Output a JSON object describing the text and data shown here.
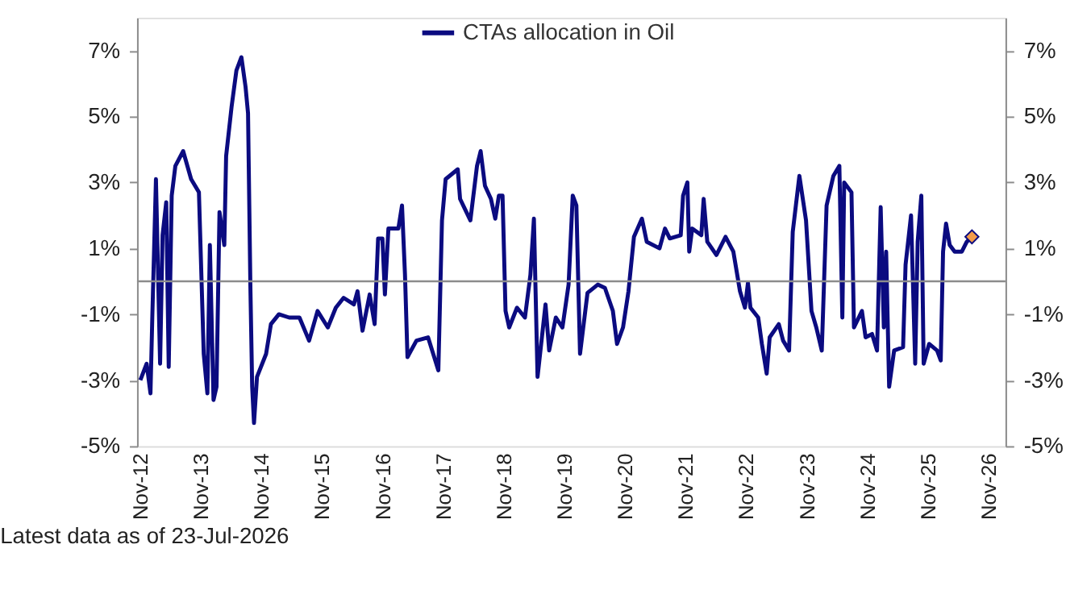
{
  "chart_data": {
    "type": "line",
    "xlim": [
      "2012-10-12",
      "2027-02-10"
    ],
    "xticks": [
      {
        "value": "2012-11-01",
        "label": "Nov-12"
      },
      {
        "value": "2013-11-01",
        "label": "Nov-13"
      },
      {
        "value": "2014-11-01",
        "label": "Nov-14"
      },
      {
        "value": "2015-11-01",
        "label": "Nov-15"
      },
      {
        "value": "2016-11-01",
        "label": "Nov-16"
      },
      {
        "value": "2017-11-01",
        "label": "Nov-17"
      },
      {
        "value": "2018-11-01",
        "label": "Nov-18"
      },
      {
        "value": "2019-11-01",
        "label": "Nov-19"
      },
      {
        "value": "2020-11-01",
        "label": "Nov-20"
      },
      {
        "value": "2021-11-01",
        "label": "Nov-21"
      },
      {
        "value": "2022-11-01",
        "label": "Nov-22"
      },
      {
        "value": "2023-11-01",
        "label": "Nov-23"
      },
      {
        "value": "2024-11-01",
        "label": "Nov-24"
      },
      {
        "value": "2025-11-01",
        "label": "Nov-25"
      },
      {
        "value": "2026-11-01",
        "label": "Nov-26"
      }
    ],
    "ylim": [
      -5,
      8
    ],
    "yticks": [
      {
        "value": -5,
        "label": "-5%"
      },
      {
        "value": -3,
        "label": "-3%"
      },
      {
        "value": -1,
        "label": "-1%"
      },
      {
        "value": 1,
        "label": "1%"
      },
      {
        "value": 3,
        "label": "3%"
      },
      {
        "value": 5,
        "label": "5%"
      },
      {
        "value": 7,
        "label": "7%"
      }
    ],
    "y2lim": [
      -5,
      8
    ],
    "y2ticks": [
      {
        "value": -5,
        "label": "-5%"
      },
      {
        "value": -3,
        "label": "-3%"
      },
      {
        "value": -1,
        "label": "-1%"
      },
      {
        "value": 1,
        "label": "1%"
      },
      {
        "value": 3,
        "label": "3%"
      },
      {
        "value": 5,
        "label": "5%"
      },
      {
        "value": 7,
        "label": "7%"
      }
    ],
    "grid": false,
    "legend": "top",
    "ref_lines": [
      {
        "axis": "y",
        "value": 0,
        "color": "#8c8c8c"
      }
    ],
    "annotations": [
      "Latest data as of 23-Jul-2026"
    ],
    "series": [
      {
        "name": "CTAs allocation in Oil",
        "color": "#0b0b80",
        "marker": "none",
        "x": [
          "2012-11-01",
          "2012-12-09",
          "2013-01-01",
          "2013-01-12",
          "2013-02-03",
          "2013-02-28",
          "2013-03-15",
          "2013-04-06",
          "2013-04-21",
          "2013-05-09",
          "2013-05-31",
          "2013-07-17",
          "2013-09-03",
          "2013-10-20",
          "2013-11-18",
          "2013-12-10",
          "2013-12-25",
          "2014-01-16",
          "2014-02-03",
          "2014-02-21",
          "2014-03-22",
          "2014-04-02",
          "2014-05-05",
          "2014-06-03",
          "2014-07-03",
          "2014-07-28",
          "2014-08-12",
          "2014-08-26",
          "2014-09-06",
          "2014-09-17",
          "2014-10-05",
          "2014-11-29",
          "2014-12-28",
          "2015-02-14",
          "2015-04-17",
          "2015-06-18",
          "2015-08-15",
          "2015-10-05",
          "2015-12-06",
          "2016-01-23",
          "2016-03-10",
          "2016-05-11",
          "2016-06-02",
          "2016-07-02",
          "2016-08-14",
          "2016-09-13",
          "2016-10-04",
          "2016-10-30",
          "2016-11-14",
          "2016-12-05",
          "2017-02-03",
          "2017-02-25",
          "2017-03-15",
          "2017-03-30",
          "2017-05-23",
          "2017-08-01",
          "2017-10-02",
          "2017-10-24",
          "2017-11-15",
          "2018-01-27",
          "2018-02-10",
          "2018-04-13",
          "2018-05-23",
          "2018-06-14",
          "2018-07-10",
          "2018-08-15",
          "2018-09-10",
          "2018-10-02",
          "2018-10-24",
          "2018-11-11",
          "2018-12-03",
          "2019-01-19",
          "2019-03-08",
          "2019-04-10",
          "2019-05-01",
          "2019-05-23",
          "2019-07-10",
          "2019-08-01",
          "2019-09-10",
          "2019-10-20",
          "2019-11-26",
          "2019-12-21",
          "2020-01-12",
          "2020-02-03",
          "2020-03-19",
          "2020-05-20",
          "2020-07-02",
          "2020-08-19",
          "2020-09-13",
          "2020-10-19",
          "2020-11-21",
          "2020-12-24",
          "2021-02-10",
          "2021-03-11",
          "2021-05-27",
          "2021-06-29",
          "2021-07-28",
          "2021-10-02",
          "2021-10-16",
          "2021-11-11",
          "2021-11-22",
          "2021-12-10",
          "2022-02-03",
          "2022-02-17",
          "2022-03-11",
          "2022-05-05",
          "2022-06-29",
          "2022-08-15",
          "2022-09-24",
          "2022-10-24",
          "2022-11-11",
          "2022-11-26",
          "2023-01-12",
          "2023-02-03",
          "2023-03-04",
          "2023-03-22",
          "2023-05-16",
          "2023-06-11",
          "2023-07-17",
          "2023-08-08",
          "2023-09-17",
          "2023-10-27",
          "2023-11-29",
          "2023-12-28",
          "2024-01-30",
          "2024-02-28",
          "2024-04-09",
          "2024-05-15",
          "2024-06-02",
          "2024-06-13",
          "2024-07-27",
          "2024-08-11",
          "2024-09-28",
          "2024-10-20",
          "2024-11-28",
          "2024-12-28",
          "2025-01-19",
          "2025-02-07",
          "2025-02-21",
          "2025-03-11",
          "2025-04-10",
          "2025-06-03",
          "2025-06-18",
          "2025-07-21",
          "2025-08-15",
          "2025-08-30",
          "2025-09-21",
          "2025-10-05",
          "2025-11-07",
          "2025-12-25",
          "2026-01-16",
          "2026-01-30",
          "2026-02-17",
          "2026-03-11",
          "2026-04-10",
          "2026-05-23",
          "2026-06-22",
          "2026-07-23"
        ],
        "values": [
          -3.0,
          -2.5,
          -3.4,
          -1.1,
          3.1,
          -2.5,
          1.4,
          2.4,
          -2.6,
          2.6,
          3.5,
          3.95,
          3.1,
          2.7,
          -2.2,
          -3.4,
          1.1,
          -3.6,
          -3.2,
          2.1,
          1.1,
          3.8,
          5.3,
          6.4,
          6.8,
          5.9,
          5.1,
          -0.1,
          -3.2,
          -4.3,
          -2.9,
          -2.2,
          -1.3,
          -1.0,
          -1.1,
          -1.1,
          -1.8,
          -0.9,
          -1.4,
          -0.8,
          -0.5,
          -0.7,
          -0.3,
          -1.5,
          -0.4,
          -1.3,
          1.3,
          1.3,
          -0.4,
          1.6,
          1.6,
          2.3,
          0.2,
          -2.3,
          -1.8,
          -1.7,
          -2.7,
          1.85,
          3.1,
          3.4,
          2.5,
          1.85,
          3.5,
          3.95,
          2.9,
          2.5,
          1.9,
          2.6,
          2.6,
          -0.9,
          -1.4,
          -0.8,
          -1.1,
          0.2,
          1.9,
          -2.9,
          -0.7,
          -2.1,
          -1.1,
          -1.4,
          -0.1,
          2.6,
          2.3,
          -2.2,
          -0.35,
          -0.1,
          -0.2,
          -0.9,
          -1.9,
          -1.4,
          -0.3,
          1.35,
          1.9,
          1.2,
          1.0,
          1.6,
          1.3,
          1.4,
          2.6,
          3.0,
          0.9,
          1.6,
          1.4,
          2.5,
          1.2,
          0.8,
          1.35,
          0.9,
          -0.3,
          -0.8,
          -0.05,
          -0.8,
          -1.1,
          -1.9,
          -2.8,
          -1.7,
          -1.3,
          -1.8,
          -2.1,
          1.5,
          3.2,
          1.85,
          -0.9,
          -1.4,
          -2.1,
          2.3,
          3.2,
          3.5,
          -1.1,
          3.0,
          2.7,
          -1.4,
          -0.9,
          -1.7,
          -1.6,
          -2.1,
          2.25,
          -1.4,
          0.9,
          -3.2,
          -2.1,
          -2.0,
          0.5,
          2.0,
          -2.5,
          1.2,
          2.6,
          -2.5,
          -1.9,
          -2.1,
          -2.4,
          0.9,
          1.75,
          1.1,
          0.9,
          0.9,
          1.2,
          1.35
        ]
      },
      {
        "type": "scatter",
        "color": "#f39c4a",
        "marker": "diamond",
        "x": [
          "2026-07-23"
        ],
        "values": [
          1.35
        ]
      }
    ]
  }
}
